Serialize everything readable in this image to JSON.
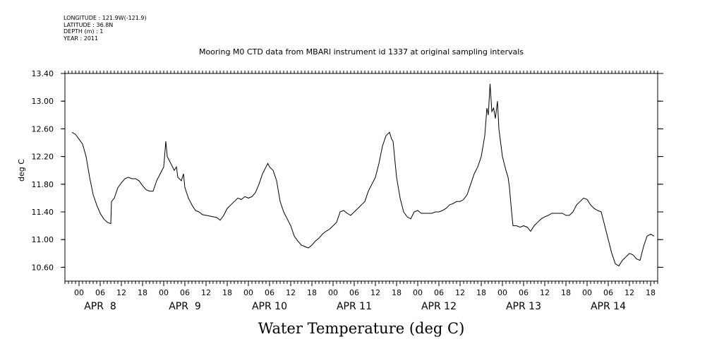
{
  "metadata": {
    "longitude": "LONGITUDE : 121.9W(-121.9)",
    "latitude": "LATITUDE : 36.8N",
    "depth": "DEPTH (m) : 1",
    "year": "YEAR : 2011"
  },
  "chart_data": {
    "type": "line",
    "title": "Mooring M0 CTD data from MBARI instrument id 1337 at original sampling intervals",
    "xlabel": "Water Temperature (deg C)",
    "ylabel": "deg C",
    "ylim": [
      10.4,
      13.4
    ],
    "yticks": [
      "13.40",
      "13.00",
      "12.60",
      "12.20",
      "11.80",
      "11.40",
      "11.00",
      "10.60"
    ],
    "xlim_hours": [
      -4,
      164
    ],
    "hour_ticks": [
      "00",
      "06",
      "12",
      "18"
    ],
    "day_labels": [
      "APR  8",
      "APR  9",
      "APR 10",
      "APR 11",
      "APR 12",
      "APR 13",
      "APR 14"
    ],
    "series": [
      {
        "color": "#000000",
        "points": [
          [
            -2,
            12.55
          ],
          [
            -1,
            12.52
          ],
          [
            0,
            12.45
          ],
          [
            1,
            12.38
          ],
          [
            2,
            12.2
          ],
          [
            3,
            11.9
          ],
          [
            4,
            11.65
          ],
          [
            5,
            11.5
          ],
          [
            6,
            11.38
          ],
          [
            7,
            11.3
          ],
          [
            8,
            11.25
          ],
          [
            9,
            11.23
          ],
          [
            9.2,
            11.55
          ],
          [
            10,
            11.6
          ],
          [
            11,
            11.75
          ],
          [
            12,
            11.82
          ],
          [
            13,
            11.88
          ],
          [
            14,
            11.9
          ],
          [
            15,
            11.88
          ],
          [
            16,
            11.88
          ],
          [
            17,
            11.85
          ],
          [
            18,
            11.78
          ],
          [
            19,
            11.72
          ],
          [
            20,
            11.7
          ],
          [
            21,
            11.7
          ],
          [
            22,
            11.85
          ],
          [
            23,
            11.95
          ],
          [
            24,
            12.05
          ],
          [
            24.6,
            12.42
          ],
          [
            25,
            12.2
          ],
          [
            26,
            12.1
          ],
          [
            27,
            12.0
          ],
          [
            27.6,
            12.05
          ],
          [
            28,
            11.9
          ],
          [
            29,
            11.85
          ],
          [
            29.6,
            11.95
          ],
          [
            30,
            11.75
          ],
          [
            31,
            11.6
          ],
          [
            32,
            11.5
          ],
          [
            33,
            11.42
          ],
          [
            34,
            11.4
          ],
          [
            35,
            11.36
          ],
          [
            36,
            11.35
          ],
          [
            37,
            11.34
          ],
          [
            38,
            11.33
          ],
          [
            39,
            11.32
          ],
          [
            40,
            11.28
          ],
          [
            41,
            11.35
          ],
          [
            42,
            11.45
          ],
          [
            43,
            11.5
          ],
          [
            44,
            11.55
          ],
          [
            45,
            11.6
          ],
          [
            46,
            11.58
          ],
          [
            47,
            11.62
          ],
          [
            48,
            11.6
          ],
          [
            49,
            11.62
          ],
          [
            50,
            11.68
          ],
          [
            51,
            11.8
          ],
          [
            52,
            11.95
          ],
          [
            53,
            12.05
          ],
          [
            53.5,
            12.1
          ],
          [
            54,
            12.05
          ],
          [
            55,
            12.0
          ],
          [
            56,
            11.85
          ],
          [
            57,
            11.55
          ],
          [
            58,
            11.4
          ],
          [
            59,
            11.3
          ],
          [
            60,
            11.2
          ],
          [
            61,
            11.05
          ],
          [
            62,
            10.98
          ],
          [
            63,
            10.92
          ],
          [
            64,
            10.9
          ],
          [
            65,
            10.88
          ],
          [
            66,
            10.92
          ],
          [
            67,
            10.98
          ],
          [
            68,
            11.02
          ],
          [
            69,
            11.08
          ],
          [
            70,
            11.12
          ],
          [
            71,
            11.15
          ],
          [
            72,
            11.2
          ],
          [
            73,
            11.25
          ],
          [
            74,
            11.4
          ],
          [
            75,
            11.42
          ],
          [
            76,
            11.38
          ],
          [
            77,
            11.35
          ],
          [
            78,
            11.4
          ],
          [
            79,
            11.45
          ],
          [
            80,
            11.5
          ],
          [
            81,
            11.55
          ],
          [
            82,
            11.7
          ],
          [
            83,
            11.8
          ],
          [
            84,
            11.9
          ],
          [
            85,
            12.1
          ],
          [
            86,
            12.35
          ],
          [
            87,
            12.5
          ],
          [
            88,
            12.55
          ],
          [
            88.6,
            12.45
          ],
          [
            89,
            12.42
          ],
          [
            90,
            11.9
          ],
          [
            91,
            11.6
          ],
          [
            92,
            11.4
          ],
          [
            93,
            11.33
          ],
          [
            94,
            11.3
          ],
          [
            95,
            11.4
          ],
          [
            96,
            11.42
          ],
          [
            97,
            11.38
          ],
          [
            98,
            11.38
          ],
          [
            99,
            11.38
          ],
          [
            100,
            11.38
          ],
          [
            101,
            11.4
          ],
          [
            102,
            11.4
          ],
          [
            103,
            11.42
          ],
          [
            104,
            11.45
          ],
          [
            105,
            11.5
          ],
          [
            106,
            11.52
          ],
          [
            107,
            11.55
          ],
          [
            108,
            11.55
          ],
          [
            109,
            11.58
          ],
          [
            110,
            11.65
          ],
          [
            111,
            11.8
          ],
          [
            112,
            11.95
          ],
          [
            113,
            12.05
          ],
          [
            114,
            12.2
          ],
          [
            115,
            12.5
          ],
          [
            115.6,
            12.9
          ],
          [
            116,
            12.8
          ],
          [
            116.5,
            13.25
          ],
          [
            117,
            12.85
          ],
          [
            117.5,
            12.9
          ],
          [
            118,
            12.75
          ],
          [
            118.6,
            13.0
          ],
          [
            119,
            12.6
          ],
          [
            120,
            12.2
          ],
          [
            121,
            12.0
          ],
          [
            121.6,
            11.9
          ],
          [
            122,
            11.75
          ],
          [
            122.6,
            11.4
          ],
          [
            123,
            11.2
          ],
          [
            124,
            11.2
          ],
          [
            125,
            11.18
          ],
          [
            126,
            11.2
          ],
          [
            127,
            11.18
          ],
          [
            128,
            11.12
          ],
          [
            129,
            11.2
          ],
          [
            130,
            11.25
          ],
          [
            131,
            11.3
          ],
          [
            132,
            11.33
          ],
          [
            133,
            11.35
          ],
          [
            134,
            11.38
          ],
          [
            135,
            11.38
          ],
          [
            136,
            11.38
          ],
          [
            137,
            11.38
          ],
          [
            138,
            11.35
          ],
          [
            139,
            11.35
          ],
          [
            140,
            11.4
          ],
          [
            141,
            11.5
          ],
          [
            142,
            11.55
          ],
          [
            143,
            11.6
          ],
          [
            144,
            11.58
          ],
          [
            145,
            11.5
          ],
          [
            146,
            11.45
          ],
          [
            147,
            11.42
          ],
          [
            148,
            11.4
          ],
          [
            149,
            11.2
          ],
          [
            150,
            11.0
          ],
          [
            151,
            10.8
          ],
          [
            152,
            10.65
          ],
          [
            153,
            10.62
          ],
          [
            154,
            10.7
          ],
          [
            155,
            10.75
          ],
          [
            156,
            10.8
          ],
          [
            157,
            10.78
          ],
          [
            158,
            10.72
          ],
          [
            159,
            10.7
          ],
          [
            160,
            10.9
          ],
          [
            161,
            11.05
          ],
          [
            162,
            11.08
          ],
          [
            163,
            11.05
          ]
        ]
      }
    ]
  }
}
